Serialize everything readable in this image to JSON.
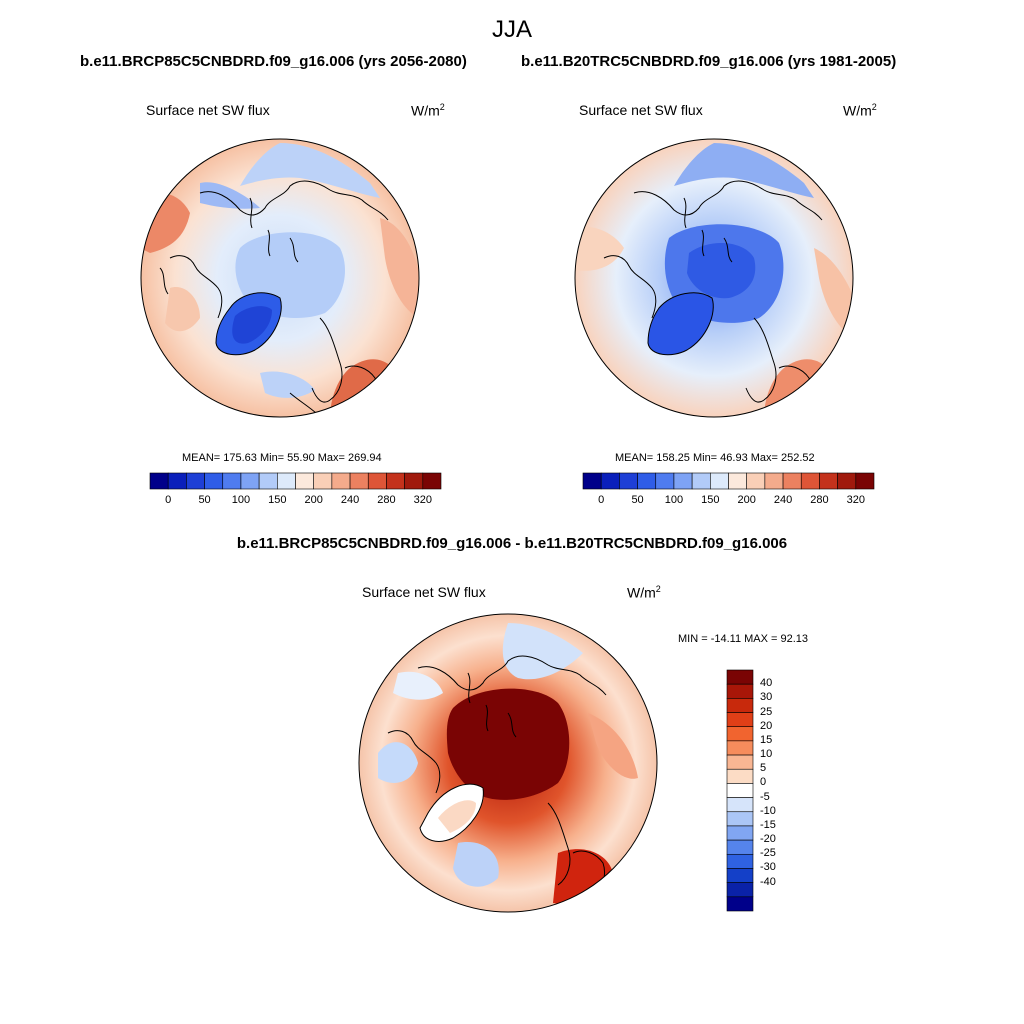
{
  "title": "JJA",
  "panels": [
    {
      "header": "b.e11.BRCP85C5CNBDRD.f09_g16.006 (yrs 2056-2080)",
      "variable": "Surface net SW flux",
      "units": "W/m",
      "units_sup": "2",
      "stats": "MEAN= 175.63  Min=  55.90  Max= 269.94"
    },
    {
      "header": "b.e11.B20TRC5CNBDRD.f09_g16.006 (yrs 1981-2005)",
      "variable": "Surface net SW flux",
      "units": "W/m",
      "units_sup": "2",
      "stats": "MEAN= 158.25  Min=  46.93  Max= 252.52"
    }
  ],
  "colorbar": {
    "labels": [
      "0",
      "50",
      "100",
      "150",
      "200",
      "240",
      "280",
      "320"
    ],
    "colors": [
      "#00008a",
      "#0a1fbb",
      "#1e3fd6",
      "#2f5de8",
      "#4f7cf0",
      "#7ea3f5",
      "#b2cbf8",
      "#ddeafb",
      "#fce9dc",
      "#f9cfb7",
      "#f4ab8c",
      "#ec8160",
      "#de5537",
      "#c4321c",
      "#a01a0d",
      "#7a0404"
    ]
  },
  "diff": {
    "header": "b.e11.BRCP85C5CNBDRD.f09_g16.006 - b.e11.B20TRC5CNBDRD.f09_g16.006",
    "variable": "Surface net SW flux",
    "units": "W/m",
    "units_sup": "2",
    "stats": "MIN = -14.11 MAX =  92.13",
    "colorbar": {
      "labels": [
        "40",
        "30",
        "25",
        "20",
        "15",
        "10",
        "5",
        "0",
        "-5",
        "-10",
        "-15",
        "-20",
        "-25",
        "-30",
        "-40"
      ],
      "colors": [
        "#7a0404",
        "#a81608",
        "#c8290c",
        "#e03f17",
        "#f1642f",
        "#f68c5c",
        "#f9b693",
        "#fcdcc5",
        "#ffffff",
        "#d6e4fa",
        "#abc6f6",
        "#81a6f2",
        "#5584ec",
        "#2f62e2",
        "#1440c8",
        "#0a22a8",
        "#00008a"
      ]
    }
  }
}
